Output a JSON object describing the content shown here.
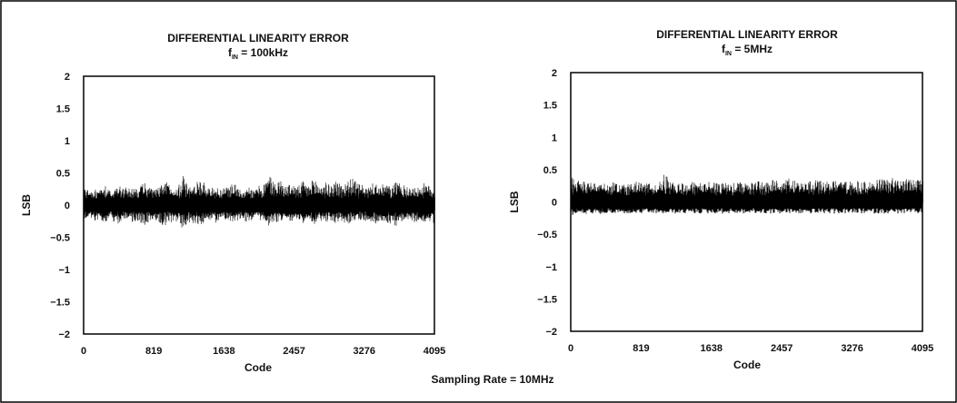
{
  "footer": "Sampling Rate = 10MHz",
  "chart_data": [
    {
      "type": "line",
      "title": "DIFFERENTIAL LINEARITY ERROR",
      "subtitle": {
        "prefix": "f",
        "subscript": "IN",
        "suffix": " = 100kHz"
      },
      "xlabel": "Code",
      "ylabel": "LSB",
      "xlim": [
        0,
        4095
      ],
      "ylim": [
        -2,
        2
      ],
      "x_ticks": [
        "0",
        "819",
        "1638",
        "2457",
        "3276",
        "4095"
      ],
      "y_ticks": [
        "2",
        "1.5",
        "1",
        "0.5",
        "0",
        "-0.5",
        "-1",
        "-1.5",
        "-2"
      ],
      "grid": false,
      "series": [
        {
          "x_start": 0,
          "x_step": 64,
          "upper": [
            0.32,
            0.2,
            0.26,
            0.24,
            0.3,
            0.22,
            0.28,
            0.34,
            0.24,
            0.3,
            0.26,
            0.36,
            0.28,
            0.24,
            0.3,
            0.38,
            0.3,
            0.26,
            0.48,
            0.32,
            0.28,
            0.44,
            0.34,
            0.26,
            0.3,
            0.24,
            0.28,
            0.36,
            0.3,
            0.24,
            0.32,
            0.22,
            0.3,
            0.36,
            0.46,
            0.34,
            0.4,
            0.3,
            0.34,
            0.28,
            0.38,
            0.3,
            0.44,
            0.32,
            0.36,
            0.3,
            0.4,
            0.32,
            0.38,
            0.42,
            0.34,
            0.3,
            0.28,
            0.36,
            0.3,
            0.34,
            0.28,
            0.38,
            0.3,
            0.32,
            0.26,
            0.3,
            0.34,
            0.3
          ],
          "lower": [
            -0.24,
            -0.2,
            -0.26,
            -0.22,
            -0.28,
            -0.24,
            -0.3,
            -0.26,
            -0.22,
            -0.28,
            -0.24,
            -0.32,
            -0.26,
            -0.24,
            -0.3,
            -0.34,
            -0.28,
            -0.26,
            -0.36,
            -0.3,
            -0.28,
            -0.32,
            -0.26,
            -0.24,
            -0.28,
            -0.22,
            -0.24,
            -0.3,
            -0.26,
            -0.22,
            -0.28,
            -0.2,
            -0.24,
            -0.3,
            -0.34,
            -0.28,
            -0.3,
            -0.24,
            -0.26,
            -0.22,
            -0.28,
            -0.24,
            -0.3,
            -0.26,
            -0.28,
            -0.24,
            -0.3,
            -0.26,
            -0.28,
            -0.3,
            -0.26,
            -0.24,
            -0.26,
            -0.3,
            -0.24,
            -0.28,
            -0.3,
            -0.32,
            -0.26,
            -0.28,
            -0.3,
            -0.26,
            -0.3,
            -0.28
          ]
        }
      ]
    },
    {
      "type": "line",
      "title": "DIFFERENTIAL LINEARITY ERROR",
      "subtitle": {
        "prefix": "f",
        "subscript": "IN",
        "suffix": " = 5MHz"
      },
      "xlabel": "Code",
      "ylabel": "LSB",
      "xlim": [
        0,
        4095
      ],
      "ylim": [
        -2,
        2
      ],
      "x_ticks": [
        "0",
        "819",
        "1638",
        "2457",
        "3276",
        "4095"
      ],
      "y_ticks": [
        "2",
        "1.5",
        "1",
        "0.5",
        "0",
        "-0.5",
        "-1",
        "-1.5",
        "-2"
      ],
      "grid": false,
      "series": [
        {
          "x_start": 0,
          "x_step": 64,
          "upper": [
            0.4,
            0.36,
            0.3,
            0.34,
            0.28,
            0.32,
            0.3,
            0.28,
            0.34,
            0.3,
            0.26,
            0.3,
            0.32,
            0.28,
            0.3,
            0.26,
            0.28,
            0.48,
            0.32,
            0.28,
            0.3,
            0.26,
            0.32,
            0.3,
            0.28,
            0.34,
            0.3,
            0.28,
            0.3,
            0.26,
            0.32,
            0.3,
            0.28,
            0.3,
            0.34,
            0.3,
            0.32,
            0.36,
            0.3,
            0.34,
            0.38,
            0.32,
            0.3,
            0.34,
            0.32,
            0.36,
            0.3,
            0.34,
            0.32,
            0.38,
            0.34,
            0.32,
            0.36,
            0.3,
            0.34,
            0.32,
            0.36,
            0.34,
            0.4,
            0.36,
            0.34,
            0.38,
            0.36,
            0.34
          ],
          "lower": [
            -0.22,
            -0.2,
            -0.18,
            -0.2,
            -0.16,
            -0.18,
            -0.2,
            -0.16,
            -0.18,
            -0.14,
            -0.16,
            -0.18,
            -0.14,
            -0.16,
            -0.12,
            -0.14,
            -0.16,
            -0.18,
            -0.14,
            -0.12,
            -0.14,
            -0.12,
            -0.14,
            -0.12,
            -0.1,
            -0.12,
            -0.14,
            -0.1,
            -0.12,
            -0.1,
            -0.12,
            -0.1,
            -0.08,
            -0.1,
            -0.12,
            -0.1,
            -0.08,
            -0.1,
            -0.08,
            -0.1,
            -0.08,
            -0.06,
            -0.08,
            -0.1,
            -0.08,
            -0.06,
            -0.08,
            -0.06,
            -0.08,
            -0.06,
            -0.04,
            -0.06,
            -0.08,
            -0.06,
            -0.04,
            -0.06,
            -0.04,
            -0.06,
            -0.04,
            -0.02,
            -0.04,
            -0.06,
            -0.04,
            -0.02
          ]
        }
      ]
    }
  ]
}
